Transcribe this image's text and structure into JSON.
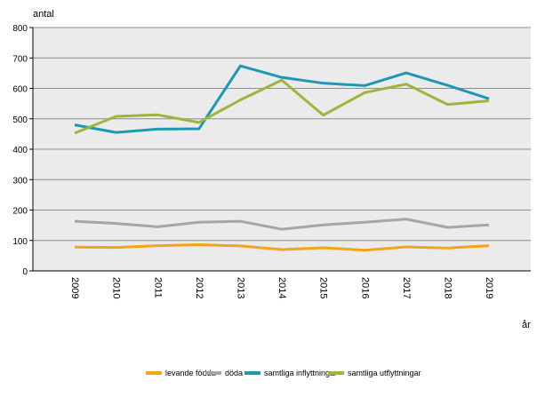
{
  "chart_data": {
    "type": "line",
    "title": "",
    "ylabel": "antal",
    "xlabel": "år",
    "ylim": [
      0,
      800
    ],
    "yticks": [
      0,
      100,
      200,
      300,
      400,
      500,
      600,
      700,
      800
    ],
    "grid": true,
    "legend_position": "bottom",
    "categories": [
      "2009",
      "2010",
      "2011",
      "2012",
      "2013",
      "2014",
      "2015",
      "2016",
      "2017",
      "2018",
      "2019"
    ],
    "series": [
      {
        "name": "levande födda",
        "color": "#F5A31A",
        "values": [
          78,
          77,
          83,
          86,
          82,
          70,
          76,
          68,
          79,
          75,
          83
        ]
      },
      {
        "name": "döda",
        "color": "#A6A6A6",
        "values": [
          163,
          156,
          145,
          160,
          163,
          137,
          151,
          160,
          170,
          143,
          151
        ]
      },
      {
        "name": "samtliga inflyttningar",
        "color": "#1E97B5",
        "values": [
          480,
          455,
          466,
          467,
          674,
          636,
          617,
          609,
          651,
          610,
          566
        ]
      },
      {
        "name": "samtliga utflyttningar",
        "color": "#9BB63A",
        "values": [
          453,
          508,
          513,
          488,
          562,
          627,
          512,
          586,
          614,
          547,
          559
        ]
      }
    ]
  }
}
